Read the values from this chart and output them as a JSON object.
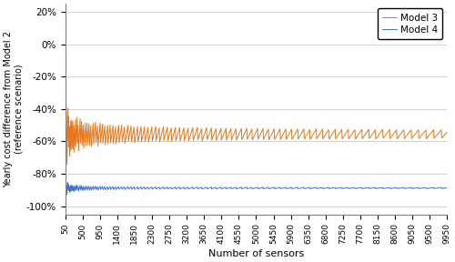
{
  "model3_color": "#E8761A",
  "model4_color": "#4472C4",
  "ylabel": "Yearly cost difference from Model 2\n(reference scenario)",
  "xlabel": "Number of sensors",
  "yticks": [
    -1.0,
    -0.8,
    -0.6,
    -0.4,
    -0.2,
    0.0,
    0.2
  ],
  "ytick_labels": [
    "-100%",
    "-80%",
    "-60%",
    "-40%",
    "-20%",
    "0%",
    "20%"
  ],
  "xtick_labels": [
    "50",
    "500",
    "950",
    "1400",
    "1850",
    "2300",
    "2750",
    "3200",
    "3650",
    "4100",
    "4550",
    "5000",
    "5450",
    "5900",
    "6350",
    "6800",
    "7250",
    "7700",
    "8150",
    "8600",
    "9050",
    "9500",
    "9950"
  ],
  "ylim": [
    -1.05,
    0.25
  ],
  "legend_labels": [
    "Model 3",
    "Model 4"
  ],
  "background_color": "#FFFFFF",
  "grid_color": "#C0C0C0"
}
